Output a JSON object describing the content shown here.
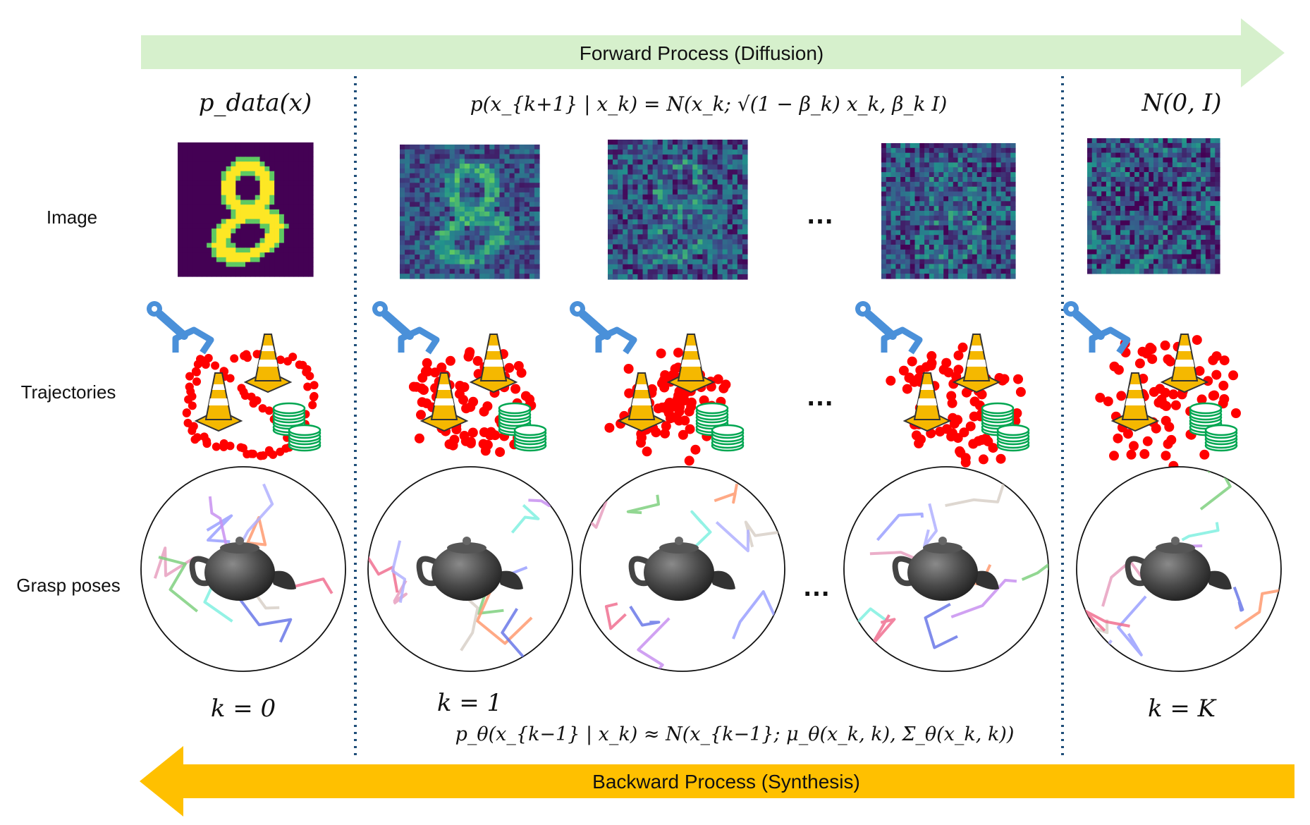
{
  "arrows": {
    "forward_label": "Forward Process (Diffusion)",
    "backward_label": "Backward Process (Synthesis)",
    "forward_color": "#d6f0cc",
    "backward_color": "#ffc000"
  },
  "row_labels": {
    "image": "Image",
    "trajectories": "Trajectories",
    "grasp": "Grasp poses"
  },
  "equations": {
    "data": "p_data(x)",
    "forward": "p(x_{k+1} | x_k) = N(x_k; √(1 − β_k) x_k, β_k I)",
    "noise": "N(0, I)",
    "backward": "p_θ(x_{k−1} | x_k) ≈ N(x_{k−1}; μ_θ(x_k, k), Σ_θ(x_k, k))"
  },
  "steps": {
    "k0": "k = 0",
    "k1": "k = 1",
    "kK": "k = K"
  },
  "ellipsis": "…",
  "colors": {
    "divider": "#1f4e79",
    "gripper": "#4a90d9",
    "dots": "#ff0000",
    "cone": "#f5b800",
    "coins": "#00a651",
    "viridis_dark": "#440154",
    "viridis_yellow": "#fde725"
  },
  "icons": [
    "gripper-icon",
    "traffic-cone-icon",
    "coin-stack-icon",
    "teapot-icon"
  ]
}
